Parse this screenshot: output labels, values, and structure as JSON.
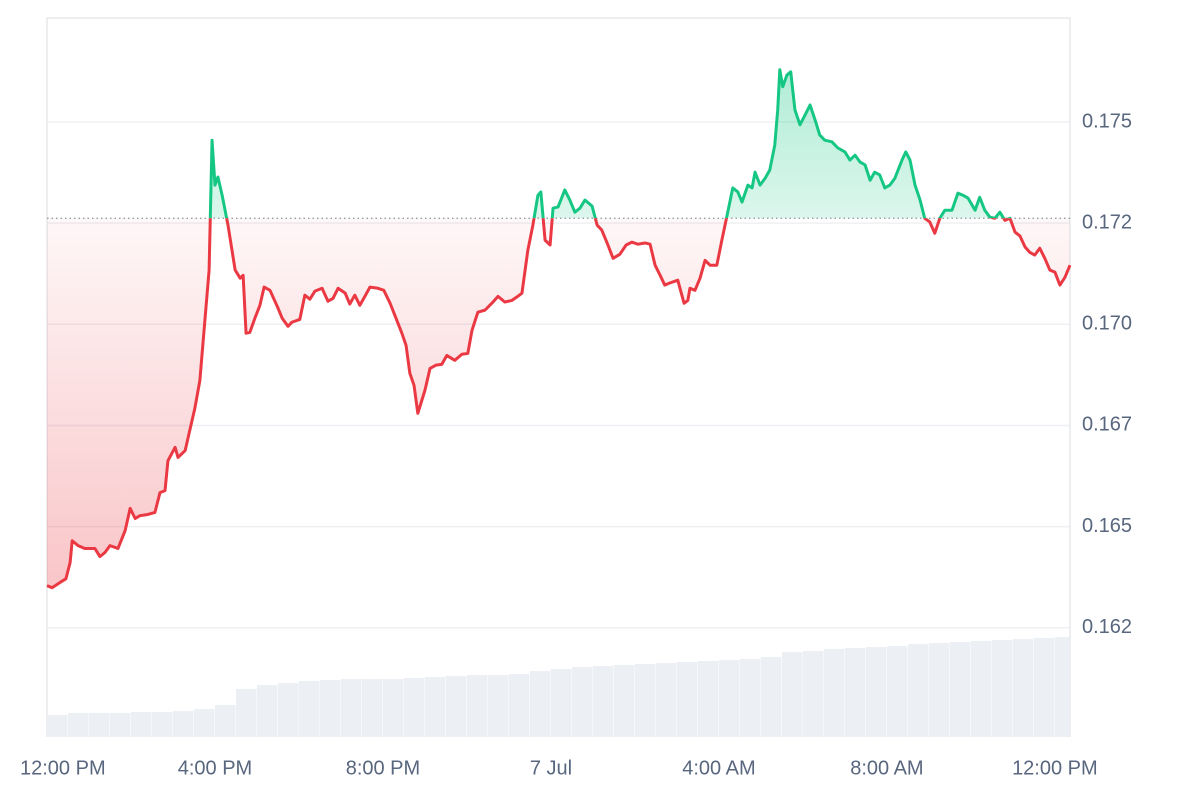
{
  "chart_data": {
    "type": "line",
    "x": [
      0,
      0.12,
      0.31,
      0.45,
      0.55,
      0.6,
      0.74,
      0.9,
      1.14,
      1.26,
      1.38,
      1.5,
      1.69,
      1.86,
      1.98,
      2.1,
      2.21,
      2.4,
      2.57,
      2.69,
      2.81,
      2.88,
      3.05,
      3.12,
      3.29,
      3.4,
      3.52,
      3.64,
      3.76,
      3.86,
      3.93,
      4.0,
      4.07,
      4.17,
      4.31,
      4.48,
      4.6,
      4.67,
      4.74,
      4.83,
      4.95,
      5.07,
      5.17,
      5.31,
      5.48,
      5.6,
      5.74,
      5.83,
      6.02,
      6.14,
      6.26,
      6.38,
      6.55,
      6.69,
      6.81,
      6.93,
      7.1,
      7.21,
      7.33,
      7.45,
      7.57,
      7.69,
      7.88,
      8.02,
      8.17,
      8.31,
      8.45,
      8.55,
      8.64,
      8.74,
      8.83,
      9.0,
      9.12,
      9.26,
      9.4,
      9.52,
      9.71,
      9.88,
      10.02,
      10.12,
      10.26,
      10.43,
      10.62,
      10.74,
      10.9,
      11.07,
      11.21,
      11.31,
      11.45,
      11.57,
      11.69,
      11.76,
      11.86,
      11.98,
      12.05,
      12.17,
      12.33,
      12.45,
      12.57,
      12.69,
      12.81,
      12.98,
      13.1,
      13.21,
      13.33,
      13.48,
      13.64,
      13.79,
      13.93,
      14.07,
      14.24,
      14.36,
      14.48,
      14.6,
      14.71,
      14.83,
      15.02,
      15.17,
      15.26,
      15.31,
      15.43,
      15.55,
      15.67,
      15.79,
      15.95,
      16.07,
      16.21,
      16.33,
      16.45,
      16.55,
      16.69,
      16.79,
      16.86,
      16.98,
      17.1,
      17.21,
      17.33,
      17.4,
      17.45,
      17.52,
      17.62,
      17.71,
      17.81,
      17.93,
      18.05,
      18.17,
      18.29,
      18.4,
      18.52,
      18.69,
      18.83,
      19.0,
      19.12,
      19.24,
      19.36,
      19.48,
      19.6,
      19.71,
      19.83,
      19.95,
      20.07,
      20.19,
      20.36,
      20.45,
      20.55,
      20.67,
      20.79,
      20.9,
      21.02,
      21.14,
      21.26,
      21.38,
      21.55,
      21.69,
      21.81,
      21.93,
      22.1,
      22.21,
      22.33,
      22.45,
      22.57,
      22.69,
      22.81,
      22.93,
      23.05,
      23.17,
      23.29,
      23.4,
      23.52,
      23.64,
      23.76,
      23.88,
      24.0,
      24.12,
      24.24,
      24.36
    ],
    "values": [
      0.16354,
      0.16349,
      0.16362,
      0.16371,
      0.16411,
      0.16465,
      0.16453,
      0.16446,
      0.16446,
      0.16426,
      0.16436,
      0.16453,
      0.16446,
      0.1649,
      0.16545,
      0.1652,
      0.16527,
      0.1653,
      0.16535,
      0.16584,
      0.16589,
      0.16663,
      0.16696,
      0.16671,
      0.16688,
      0.16738,
      0.16792,
      0.16861,
      0.1701,
      0.17134,
      0.17455,
      0.17344,
      0.17364,
      0.17319,
      0.17245,
      0.17134,
      0.17114,
      0.17121,
      0.16978,
      0.1698,
      0.17015,
      0.17047,
      0.17092,
      0.17084,
      0.17045,
      0.17015,
      0.16995,
      0.17005,
      0.17012,
      0.17072,
      0.17062,
      0.17082,
      0.17089,
      0.17057,
      0.17064,
      0.17089,
      0.17077,
      0.1705,
      0.17072,
      0.17047,
      0.17069,
      0.17092,
      0.17089,
      0.17084,
      0.17052,
      0.17015,
      0.16978,
      0.16948,
      0.16879,
      0.16849,
      0.1678,
      0.16837,
      0.16891,
      0.16899,
      0.16901,
      0.16923,
      0.16911,
      0.16926,
      0.16928,
      0.16985,
      0.1703,
      0.17035,
      0.17055,
      0.17069,
      0.17055,
      0.17059,
      0.17069,
      0.17077,
      0.17183,
      0.17245,
      0.17319,
      0.17327,
      0.17208,
      0.17196,
      0.17287,
      0.1729,
      0.17332,
      0.17307,
      0.17277,
      0.17287,
      0.17307,
      0.17292,
      0.17245,
      0.17233,
      0.17203,
      0.17163,
      0.17173,
      0.17196,
      0.17203,
      0.17198,
      0.17201,
      0.17198,
      0.17146,
      0.17121,
      0.17097,
      0.17102,
      0.17109,
      0.17052,
      0.17059,
      0.17089,
      0.17084,
      0.17114,
      0.17158,
      0.17146,
      0.17146,
      0.17208,
      0.17277,
      0.17337,
      0.17327,
      0.17302,
      0.17344,
      0.17337,
      0.17376,
      0.17344,
      0.17361,
      0.17381,
      0.17443,
      0.1753,
      0.17629,
      0.17587,
      0.17616,
      0.17624,
      0.1753,
      0.17493,
      0.17517,
      0.17542,
      0.17505,
      0.17468,
      0.17455,
      0.17451,
      0.17436,
      0.17426,
      0.17406,
      0.17418,
      0.17401,
      0.17394,
      0.17356,
      0.17376,
      0.17369,
      0.17337,
      0.17344,
      0.17361,
      0.17406,
      0.17426,
      0.17406,
      0.17344,
      0.17307,
      0.17262,
      0.17253,
      0.17225,
      0.17262,
      0.17282,
      0.17282,
      0.17324,
      0.17319,
      0.17312,
      0.17282,
      0.17314,
      0.17282,
      0.17265,
      0.17262,
      0.17277,
      0.17257,
      0.17262,
      0.17228,
      0.17218,
      0.17191,
      0.17178,
      0.17171,
      0.17188,
      0.17163,
      0.17134,
      0.17129,
      0.17097,
      0.17116,
      0.17146
    ],
    "baseline": 0.17262,
    "up_color": "#16c784",
    "down_color": "#ea3943",
    "xlim": [
      0,
      24.36
    ],
    "xticks": [
      {
        "value": 0,
        "label": "12:00 PM"
      },
      {
        "value": 4,
        "label": "4:00 PM"
      },
      {
        "value": 8,
        "label": "8:00 PM"
      },
      {
        "value": 12,
        "label": "7 Jul"
      },
      {
        "value": 16,
        "label": "4:00 AM"
      },
      {
        "value": 20,
        "label": "8:00 AM"
      },
      {
        "value": 24,
        "label": "12:00 PM"
      }
    ],
    "ylim": [
      0.1598,
      0.17757
    ],
    "yticks": [
      {
        "value": 0.1625,
        "label": "0.162"
      },
      0.165,
      {
        "value": 0.1675,
        "label": "0.167"
      },
      {
        "value": 0.17,
        "label": "0.170"
      },
      {
        "value": 0.1725,
        "label": "0.172"
      },
      0.175
    ],
    "grid": true,
    "volume": {
      "color": "#eceff3",
      "y2lim": [
        0,
        719
      ],
      "x": [
        0,
        0.5,
        1,
        1.5,
        2,
        2.5,
        3,
        3.5,
        4,
        4.5,
        5,
        5.5,
        6,
        6.5,
        7,
        7.5,
        8,
        8.5,
        9,
        9.5,
        10,
        10.5,
        11,
        11.5,
        12,
        12.5,
        13,
        13.5,
        14,
        14.5,
        15,
        15.5,
        16,
        16.5,
        17,
        17.5,
        18,
        18.5,
        19,
        19.5,
        20,
        20.5,
        21,
        21.5,
        22,
        22.5,
        23,
        23.5,
        24
      ],
      "values": [
        22,
        24,
        24,
        24,
        25,
        25,
        26,
        28,
        32,
        48,
        52,
        54,
        56,
        57,
        58,
        58,
        58,
        59,
        60,
        61,
        62,
        62,
        63,
        66,
        68,
        70,
        71,
        72,
        73,
        74,
        75,
        76,
        77,
        78,
        80,
        85,
        86,
        88,
        89,
        90,
        91,
        93,
        94,
        95,
        96,
        97,
        98,
        99,
        100
      ]
    }
  }
}
